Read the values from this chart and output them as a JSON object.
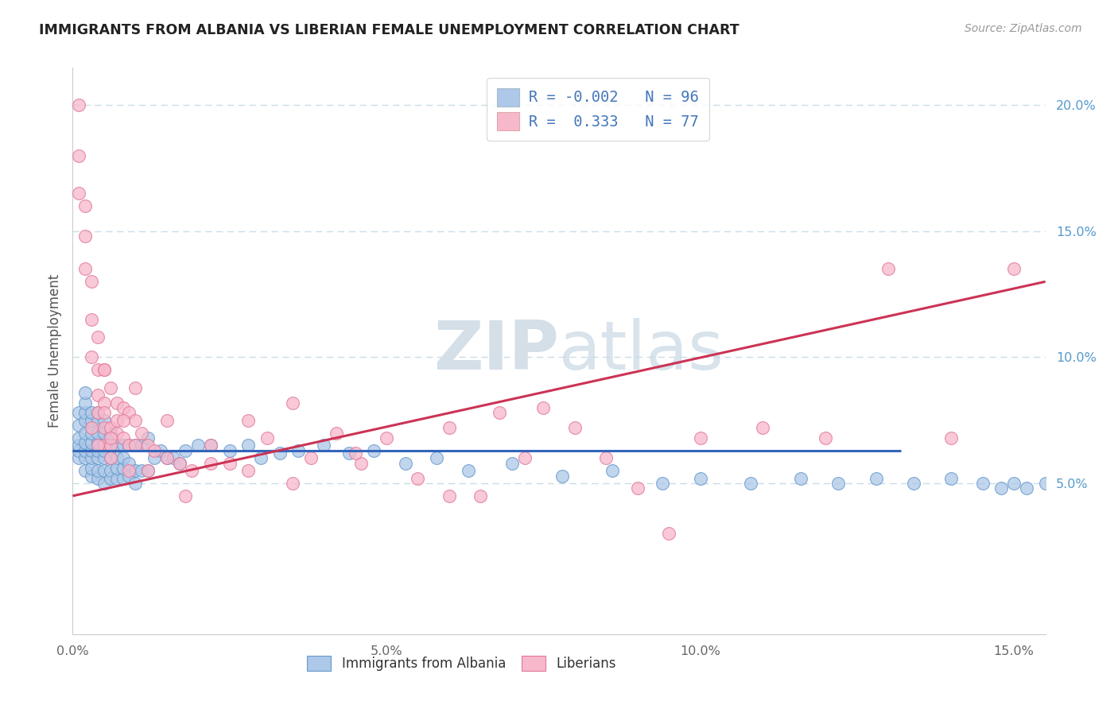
{
  "title": "IMMIGRANTS FROM ALBANIA VS LIBERIAN FEMALE UNEMPLOYMENT CORRELATION CHART",
  "source": "Source: ZipAtlas.com",
  "ylabel": "Female Unemployment",
  "xlim": [
    0.0,
    0.155
  ],
  "ylim": [
    -0.01,
    0.215
  ],
  "xtick_vals": [
    0.0,
    0.05,
    0.1,
    0.15
  ],
  "xtick_labels": [
    "0.0%",
    "5.0%",
    "10.0%",
    "15.0%"
  ],
  "ytick_right_vals": [
    0.05,
    0.1,
    0.15,
    0.2
  ],
  "ytick_right_labels": [
    "5.0%",
    "10.0%",
    "15.0%",
    "20.0%"
  ],
  "albania_R": -0.002,
  "albania_N": 96,
  "liberia_R": 0.333,
  "liberia_N": 77,
  "albania_fill": "#adc8e8",
  "albania_edge": "#6699cc",
  "liberia_fill": "#f8b8cb",
  "liberia_edge": "#e07898",
  "albania_line_color": "#3366bb",
  "liberia_line_color": "#cc3355",
  "grid_color": "#c8dde8",
  "albania_line_x_end": 0.132,
  "liberia_line_x_start": 0.0,
  "liberia_line_x_end": 0.155,
  "albania_line_y": 0.063,
  "liberia_line_y_start": 0.045,
  "liberia_line_y_end": 0.13,
  "watermark_color": "#d4dfe8",
  "albania_x": [
    0.001,
    0.001,
    0.001,
    0.001,
    0.001,
    0.001,
    0.002,
    0.002,
    0.002,
    0.002,
    0.002,
    0.002,
    0.002,
    0.002,
    0.002,
    0.003,
    0.003,
    0.003,
    0.003,
    0.003,
    0.003,
    0.003,
    0.003,
    0.004,
    0.004,
    0.004,
    0.004,
    0.004,
    0.004,
    0.004,
    0.004,
    0.005,
    0.005,
    0.005,
    0.005,
    0.005,
    0.005,
    0.005,
    0.006,
    0.006,
    0.006,
    0.006,
    0.006,
    0.007,
    0.007,
    0.007,
    0.007,
    0.008,
    0.008,
    0.008,
    0.008,
    0.009,
    0.009,
    0.009,
    0.01,
    0.01,
    0.01,
    0.011,
    0.011,
    0.012,
    0.012,
    0.013,
    0.014,
    0.015,
    0.016,
    0.017,
    0.018,
    0.02,
    0.022,
    0.025,
    0.028,
    0.03,
    0.033,
    0.036,
    0.04,
    0.044,
    0.048,
    0.053,
    0.058,
    0.063,
    0.07,
    0.078,
    0.086,
    0.094,
    0.1,
    0.108,
    0.116,
    0.122,
    0.128,
    0.134,
    0.14,
    0.145,
    0.148,
    0.15,
    0.152,
    0.155
  ],
  "albania_y": [
    0.06,
    0.063,
    0.065,
    0.068,
    0.073,
    0.078,
    0.055,
    0.06,
    0.063,
    0.066,
    0.07,
    0.075,
    0.078,
    0.082,
    0.086,
    0.053,
    0.056,
    0.06,
    0.063,
    0.066,
    0.07,
    0.075,
    0.078,
    0.052,
    0.055,
    0.06,
    0.063,
    0.066,
    0.07,
    0.075,
    0.078,
    0.05,
    0.055,
    0.06,
    0.063,
    0.066,
    0.07,
    0.075,
    0.052,
    0.055,
    0.06,
    0.065,
    0.07,
    0.052,
    0.056,
    0.06,
    0.065,
    0.052,
    0.056,
    0.06,
    0.065,
    0.053,
    0.058,
    0.065,
    0.05,
    0.055,
    0.065,
    0.055,
    0.065,
    0.055,
    0.068,
    0.06,
    0.063,
    0.06,
    0.06,
    0.058,
    0.063,
    0.065,
    0.065,
    0.063,
    0.065,
    0.06,
    0.062,
    0.063,
    0.065,
    0.062,
    0.063,
    0.058,
    0.06,
    0.055,
    0.058,
    0.053,
    0.055,
    0.05,
    0.052,
    0.05,
    0.052,
    0.05,
    0.052,
    0.05,
    0.052,
    0.05,
    0.048,
    0.05,
    0.048,
    0.05
  ],
  "liberia_x": [
    0.001,
    0.001,
    0.001,
    0.002,
    0.002,
    0.002,
    0.003,
    0.003,
    0.003,
    0.004,
    0.004,
    0.004,
    0.004,
    0.005,
    0.005,
    0.005,
    0.005,
    0.006,
    0.006,
    0.006,
    0.007,
    0.007,
    0.008,
    0.008,
    0.009,
    0.009,
    0.01,
    0.01,
    0.011,
    0.012,
    0.013,
    0.015,
    0.017,
    0.019,
    0.022,
    0.025,
    0.028,
    0.031,
    0.035,
    0.038,
    0.042,
    0.046,
    0.05,
    0.055,
    0.06,
    0.065,
    0.068,
    0.072,
    0.075,
    0.08,
    0.085,
    0.09,
    0.095,
    0.1,
    0.11,
    0.12,
    0.13,
    0.14,
    0.15,
    0.003,
    0.004,
    0.005,
    0.005,
    0.006,
    0.006,
    0.007,
    0.008,
    0.009,
    0.01,
    0.012,
    0.015,
    0.018,
    0.022,
    0.028,
    0.035,
    0.045,
    0.06
  ],
  "liberia_y": [
    0.2,
    0.18,
    0.165,
    0.16,
    0.148,
    0.135,
    0.13,
    0.115,
    0.1,
    0.108,
    0.095,
    0.085,
    0.078,
    0.095,
    0.082,
    0.072,
    0.065,
    0.088,
    0.072,
    0.065,
    0.082,
    0.07,
    0.08,
    0.068,
    0.078,
    0.065,
    0.075,
    0.065,
    0.07,
    0.065,
    0.063,
    0.06,
    0.058,
    0.055,
    0.065,
    0.058,
    0.075,
    0.068,
    0.082,
    0.06,
    0.07,
    0.058,
    0.068,
    0.052,
    0.072,
    0.045,
    0.078,
    0.06,
    0.08,
    0.072,
    0.06,
    0.048,
    0.03,
    0.068,
    0.072,
    0.068,
    0.135,
    0.068,
    0.135,
    0.072,
    0.065,
    0.095,
    0.078,
    0.068,
    0.06,
    0.075,
    0.075,
    0.055,
    0.088,
    0.055,
    0.075,
    0.045,
    0.058,
    0.055,
    0.05,
    0.062,
    0.045
  ]
}
